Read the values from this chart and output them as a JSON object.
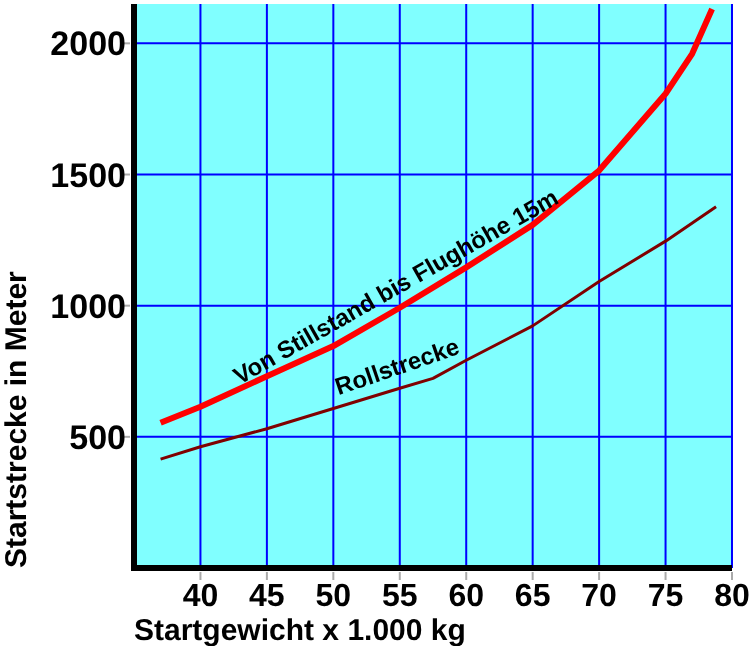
{
  "chart_data": {
    "type": "line",
    "xlabel": "Startgewicht x 1.000 kg",
    "ylabel": "Startstrecke in Meter",
    "xlim": [
      35,
      80
    ],
    "xticks": [
      40,
      45,
      50,
      55,
      60,
      65,
      70,
      75,
      80
    ],
    "ylim": [
      0,
      2150
    ],
    "yticks": [
      500,
      1000,
      1500,
      2000
    ],
    "grid": true,
    "marker": "none",
    "line_style": "solid",
    "series": [
      {
        "name": "Von Stillstand bis Flughöhe 15m",
        "color": "#ff0000",
        "x": [
          37,
          40,
          45,
          50,
          55,
          60,
          65,
          70,
          75,
          77,
          78.5
        ],
        "values": [
          554,
          615,
          731,
          846,
          992,
          1146,
          1308,
          1515,
          1808,
          1960,
          2131
        ]
      },
      {
        "name": "Rollstrecke",
        "color": "#800000",
        "x": [
          37,
          40,
          45,
          50,
          55,
          57.5,
          60,
          65,
          70,
          75,
          78.8
        ],
        "values": [
          415,
          462,
          531,
          608,
          685,
          723,
          792,
          923,
          1092,
          1246,
          1377
        ]
      }
    ]
  }
}
